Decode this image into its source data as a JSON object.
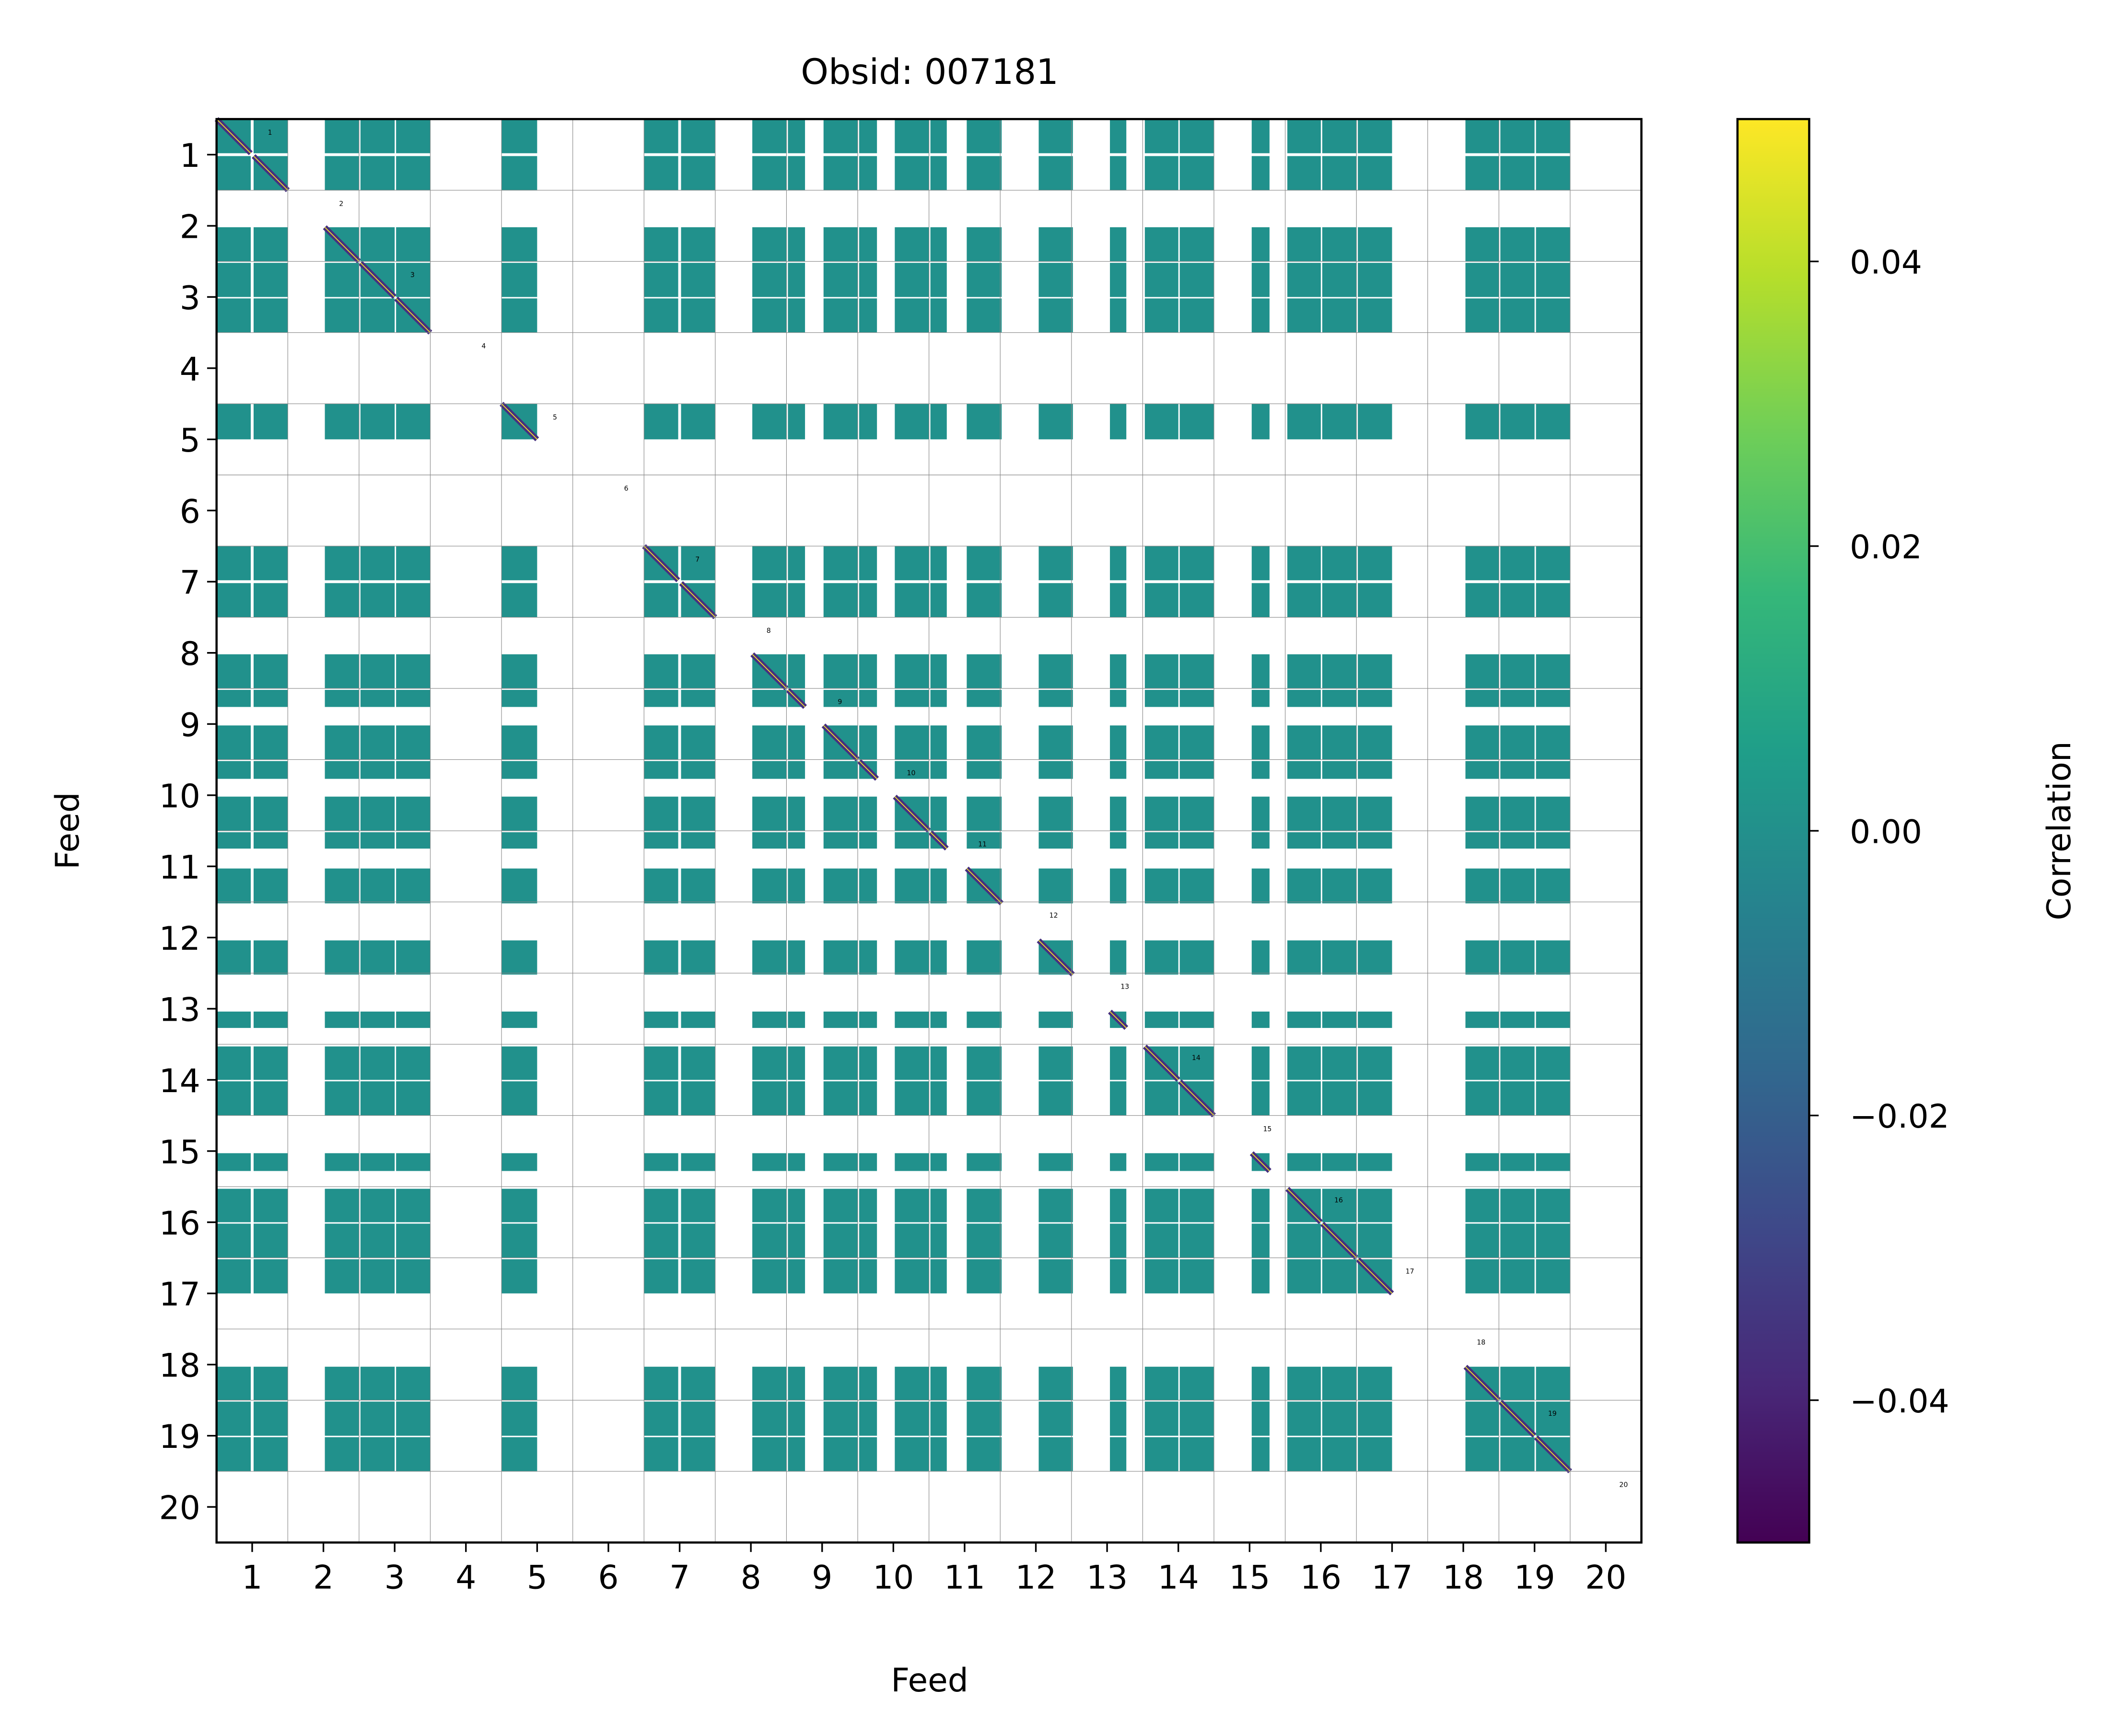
{
  "chart_data": {
    "type": "heatmap",
    "title": "Obsid: 007181",
    "xlabel": "Feed",
    "ylabel": "Feed",
    "xlim": [
      0,
      20
    ],
    "ylim": [
      0,
      20
    ],
    "x_ticks": [
      "1",
      "2",
      "3",
      "4",
      "5",
      "6",
      "7",
      "8",
      "9",
      "10",
      "11",
      "12",
      "13",
      "14",
      "15",
      "16",
      "17",
      "18",
      "19",
      "20"
    ],
    "y_ticks": [
      "1",
      "2",
      "3",
      "4",
      "5",
      "6",
      "7",
      "8",
      "9",
      "10",
      "11",
      "12",
      "13",
      "14",
      "15",
      "16",
      "17",
      "18",
      "19",
      "20"
    ],
    "grid": true,
    "feed_bands": [
      {
        "feed": 1,
        "spans": [
          [
            0.0,
            0.48
          ],
          [
            0.52,
            1.0
          ]
        ]
      },
      {
        "feed": 2,
        "spans": [
          [
            1.52,
            2.0
          ]
        ]
      },
      {
        "feed": 3,
        "spans": [
          [
            2.02,
            2.5
          ],
          [
            2.52,
            3.0
          ]
        ]
      },
      {
        "feed": 4,
        "spans": []
      },
      {
        "feed": 5,
        "spans": [
          [
            4.0,
            4.5
          ]
        ]
      },
      {
        "feed": 6,
        "spans": []
      },
      {
        "feed": 7,
        "spans": [
          [
            6.0,
            6.48
          ],
          [
            6.52,
            7.0
          ]
        ]
      },
      {
        "feed": 8,
        "spans": [
          [
            7.52,
            8.0
          ],
          [
            8.02,
            8.26
          ]
        ]
      },
      {
        "feed": 9,
        "spans": [
          [
            8.52,
            9.0
          ],
          [
            9.02,
            9.27
          ]
        ]
      },
      {
        "feed": 10,
        "spans": [
          [
            9.52,
            10.0
          ],
          [
            10.02,
            10.25
          ]
        ]
      },
      {
        "feed": 11,
        "spans": [
          [
            10.53,
            11.02
          ]
        ]
      },
      {
        "feed": 12,
        "spans": [
          [
            11.54,
            12.02
          ]
        ]
      },
      {
        "feed": 13,
        "spans": [
          [
            12.54,
            12.77
          ]
        ]
      },
      {
        "feed": 14,
        "spans": [
          [
            13.03,
            13.5
          ],
          [
            13.52,
            14.0
          ]
        ]
      },
      {
        "feed": 15,
        "spans": [
          [
            14.53,
            14.78
          ]
        ]
      },
      {
        "feed": 16,
        "spans": [
          [
            15.03,
            15.5
          ],
          [
            15.52,
            16.0
          ]
        ]
      },
      {
        "feed": 17,
        "spans": [
          [
            16.02,
            16.5
          ]
        ]
      },
      {
        "feed": 18,
        "spans": [
          [
            17.53,
            18.0
          ]
        ]
      },
      {
        "feed": 19,
        "spans": [
          [
            18.02,
            18.5
          ],
          [
            18.52,
            19.0
          ]
        ]
      },
      {
        "feed": 20,
        "spans": []
      }
    ],
    "off_diagonal_value": 0.0,
    "diagonal_block_value_range": [
      -0.05,
      0.05
    ],
    "feed_labels": [
      "1",
      "2",
      "3",
      "4",
      "5",
      "6",
      "7",
      "8",
      "9",
      "10",
      "11",
      "12",
      "13",
      "14",
      "15",
      "16",
      "17",
      "18",
      "19",
      "20"
    ],
    "colorbar": {
      "label": "Correlation",
      "range": [
        -0.05,
        0.05
      ],
      "ticks": [
        -0.04,
        -0.02,
        0.0,
        0.02,
        0.04
      ],
      "tick_labels": [
        "−0.04",
        "−0.02",
        "0.00",
        "0.02",
        "0.04"
      ],
      "colormap": "viridis",
      "colors": [
        "#440154",
        "#482878",
        "#3e4989",
        "#31688e",
        "#26828e",
        "#1f9e89",
        "#35b779",
        "#6ece58",
        "#b5de2b",
        "#fde725"
      ]
    },
    "block_color": "#21918c"
  }
}
